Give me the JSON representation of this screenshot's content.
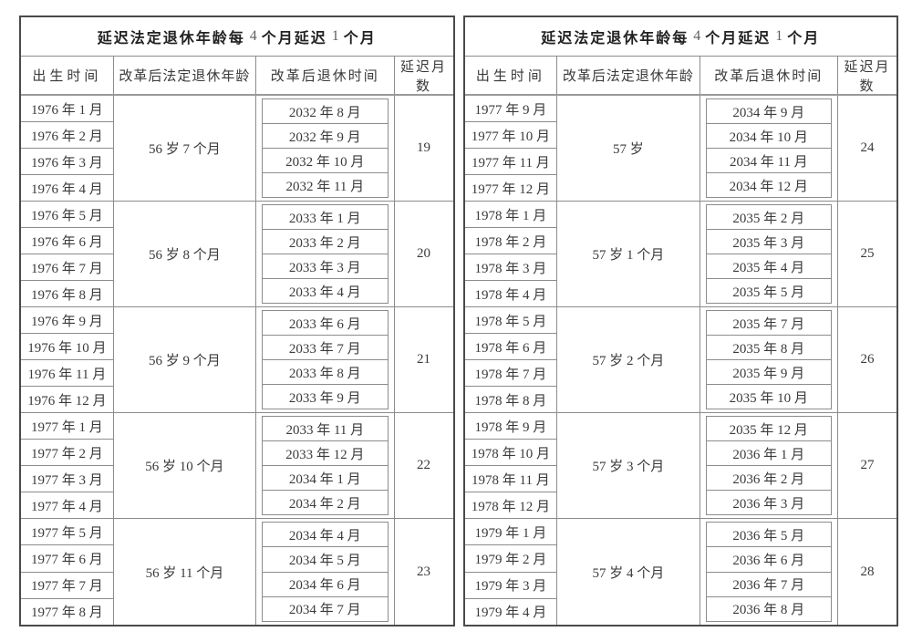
{
  "colors": {
    "background": "#ffffff",
    "text": "#3a3a3a",
    "title_text": "#222222",
    "title_number": "#5f5f5f",
    "border_outer": "#4a4a4a",
    "border_inner": "#8c8c8c"
  },
  "tables": [
    {
      "title": {
        "zh1": "延迟法定退休年龄每",
        "num1": "4",
        "zh2": "个月延迟",
        "num2": "1",
        "zh3": "个月"
      },
      "columns": [
        "出生时间",
        "改革后法定退休年龄",
        "改革后退休时间",
        "延迟月数"
      ],
      "groups": [
        {
          "birth_months": [
            "1976 年 1 月",
            "1976 年 2 月",
            "1976 年 3 月",
            "1976 年 4 月"
          ],
          "retirement_age": "56 岁 7 个月",
          "retire_months": [
            "2032 年 8 月",
            "2032 年 9 月",
            "2032 年 10 月",
            "2032 年 11 月"
          ],
          "delay_months": "19"
        },
        {
          "birth_months": [
            "1976 年 5 月",
            "1976 年 6 月",
            "1976 年 7 月",
            "1976 年 8 月"
          ],
          "retirement_age": "56 岁 8 个月",
          "retire_months": [
            "2033 年 1 月",
            "2033 年 2 月",
            "2033 年 3 月",
            "2033 年 4 月"
          ],
          "delay_months": "20"
        },
        {
          "birth_months": [
            "1976 年 9 月",
            "1976 年 10 月",
            "1976 年 11 月",
            "1976 年 12 月"
          ],
          "retirement_age": "56 岁 9 个月",
          "retire_months": [
            "2033 年 6 月",
            "2033 年 7 月",
            "2033 年 8 月",
            "2033 年 9 月"
          ],
          "delay_months": "21"
        },
        {
          "birth_months": [
            "1977 年 1 月",
            "1977 年 2 月",
            "1977 年 3 月",
            "1977 年 4 月"
          ],
          "retirement_age": "56 岁 10 个月",
          "retire_months": [
            "2033 年 11 月",
            "2033 年 12 月",
            "2034 年 1 月",
            "2034 年 2 月"
          ],
          "delay_months": "22"
        },
        {
          "birth_months": [
            "1977 年 5 月",
            "1977 年 6 月",
            "1977 年 7 月",
            "1977 年 8 月"
          ],
          "retirement_age": "56 岁 11 个月",
          "retire_months": [
            "2034 年 4 月",
            "2034 年 5 月",
            "2034 年 6 月",
            "2034 年 7 月"
          ],
          "delay_months": "23"
        }
      ]
    },
    {
      "title": {
        "zh1": "延迟法定退休年龄每",
        "num1": "4",
        "zh2": "个月延迟",
        "num2": "1",
        "zh3": "个月"
      },
      "columns": [
        "出生时间",
        "改革后法定退休年龄",
        "改革后退休时间",
        "延迟月数"
      ],
      "groups": [
        {
          "birth_months": [
            "1977 年 9 月",
            "1977 年 10 月",
            "1977 年 11 月",
            "1977 年 12 月"
          ],
          "retirement_age": "57 岁",
          "retire_months": [
            "2034 年 9 月",
            "2034 年 10 月",
            "2034 年 11 月",
            "2034 年 12 月"
          ],
          "delay_months": "24"
        },
        {
          "birth_months": [
            "1978 年 1 月",
            "1978 年 2 月",
            "1978 年 3 月",
            "1978 年 4 月"
          ],
          "retirement_age": "57 岁 1 个月",
          "retire_months": [
            "2035 年 2 月",
            "2035 年 3 月",
            "2035 年 4 月",
            "2035 年 5 月"
          ],
          "delay_months": "25"
        },
        {
          "birth_months": [
            "1978 年 5 月",
            "1978 年 6 月",
            "1978 年 7 月",
            "1978 年 8 月"
          ],
          "retirement_age": "57 岁 2 个月",
          "retire_months": [
            "2035 年 7 月",
            "2035 年 8 月",
            "2035 年 9 月",
            "2035 年 10 月"
          ],
          "delay_months": "26"
        },
        {
          "birth_months": [
            "1978 年 9 月",
            "1978 年 10 月",
            "1978 年 11 月",
            "1978 年 12 月"
          ],
          "retirement_age": "57 岁 3 个月",
          "retire_months": [
            "2035 年 12 月",
            "2036 年 1 月",
            "2036 年 2 月",
            "2036 年 3 月"
          ],
          "delay_months": "27"
        },
        {
          "birth_months": [
            "1979 年 1 月",
            "1979 年 2 月",
            "1979 年 3 月",
            "1979 年 4 月"
          ],
          "retirement_age": "57 岁 4 个月",
          "retire_months": [
            "2036 年 5 月",
            "2036 年 6 月",
            "2036 年 7 月",
            "2036 年 8 月"
          ],
          "delay_months": "28"
        }
      ]
    }
  ]
}
